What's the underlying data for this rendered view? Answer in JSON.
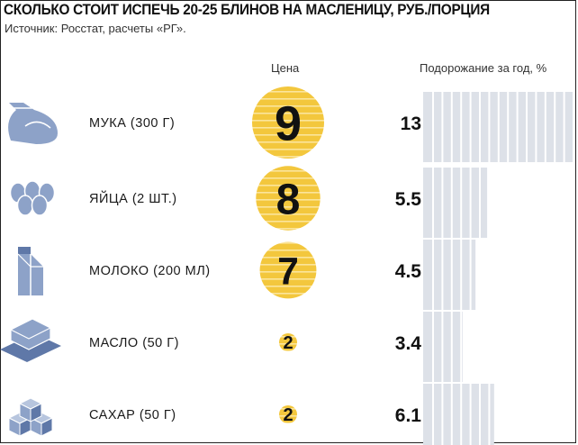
{
  "title": "СКОЛЬКО СТОИТ ИСПЕЧЬ 20-25 БЛИНОВ НА МАСЛЕНИЦУ, РУБ./ПОРЦИЯ",
  "source": "Источник: Росстат, расчеты «РГ».",
  "columns": {
    "price": "Цена",
    "growth": "Подорожание за год, %"
  },
  "colors": {
    "circle": "#f3c73d",
    "circle_stripe": "#fbe59b",
    "bar": "#dde1e8",
    "bar_stripe": "#ffffff",
    "icon": "#8da2c8",
    "icon_dark": "#5f78a8"
  },
  "chart_data": {
    "type": "bar",
    "categories": [
      "МУКА (300 Г)",
      "ЯЙЦА (2 ШТ.)",
      "МОЛОКО (200 МЛ)",
      "МАСЛО (50 Г)",
      "САХАР (50 Г)"
    ],
    "icons": [
      "flour-bag-icon",
      "eggs-icon",
      "milk-carton-icon",
      "butter-icon",
      "sugar-cubes-icon"
    ],
    "series": [
      {
        "name": "Цена",
        "values": [
          9,
          8,
          7,
          2,
          2
        ]
      },
      {
        "name": "Подорожание за год, %",
        "values": [
          13,
          5.5,
          4.5,
          3.4,
          6.1
        ]
      }
    ],
    "ylim": [
      0,
      13
    ]
  }
}
